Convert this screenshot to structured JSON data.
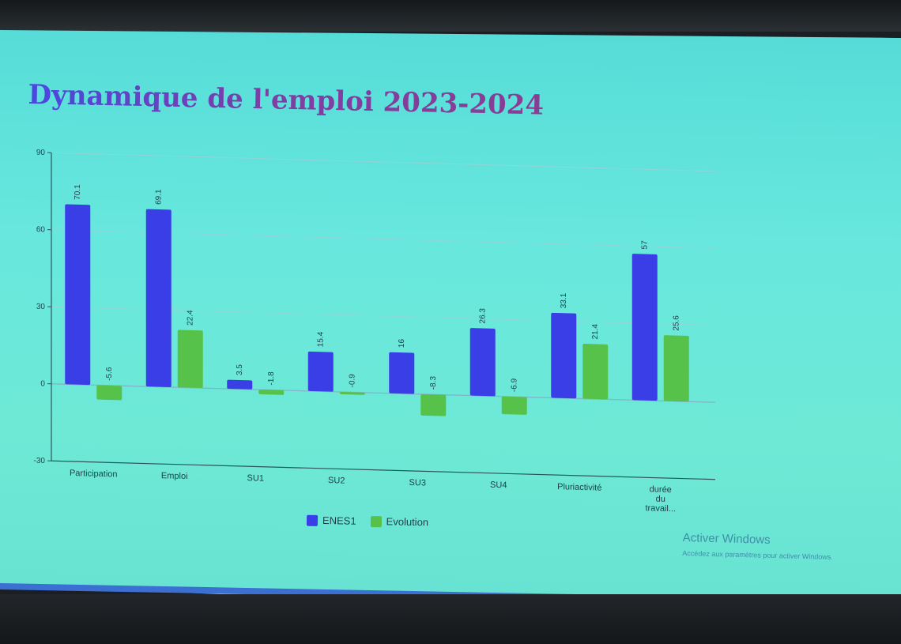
{
  "slide": {
    "title": "Dynamique de l'emploi 2023-2024"
  },
  "chart_data": {
    "type": "bar",
    "categories": [
      "Participation",
      "Emploi",
      "SU1",
      "SU2",
      "SU3",
      "SU4",
      "Pluriactivité",
      "durée du travail..."
    ],
    "series": [
      {
        "name": "ENES1",
        "color": "#3a3ee6",
        "values": [
          70.1,
          69.1,
          3.5,
          15.4,
          16,
          26.3,
          33.1,
          57
        ],
        "labels": [
          "70.1",
          "69.1",
          "3.5",
          "15.4",
          "16",
          "26.3",
          "33.1",
          "57"
        ]
      },
      {
        "name": "Evolution",
        "color": "#56c24a",
        "values": [
          -5.6,
          22.4,
          -1.8,
          -0.9,
          -8.3,
          -6.9,
          21.4,
          25.6
        ],
        "labels": [
          "-5.6",
          "22.4",
          "-1.8",
          "-0.9",
          "-8.3",
          "-6.9",
          "21.4",
          "25.6"
        ]
      }
    ],
    "yticks": [
      "90",
      "60",
      "30",
      "0",
      "-30"
    ],
    "ylim": [
      -30,
      90
    ],
    "grid": true,
    "legend_position": "bottom"
  },
  "watermark": {
    "title": "Activer Windows",
    "subtitle": "Accédez aux paramètres pour activer Windows."
  }
}
